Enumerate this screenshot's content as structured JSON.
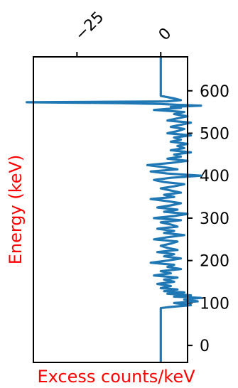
{
  "chart_data": {
    "type": "line",
    "orientation": "vertical",
    "xlabel": "Excess counts/keV",
    "ylabel": "Energy (keV)",
    "xlim": [
      -38,
      8
    ],
    "ylim": [
      -40,
      680
    ],
    "x_axis_position": "top",
    "y_axis_position": "right",
    "x_ticks": [
      {
        "value": -25,
        "label": "−25"
      },
      {
        "value": 0,
        "label": "0"
      }
    ],
    "y_ticks": [
      {
        "value": 0,
        "label": "0"
      },
      {
        "value": 100,
        "label": "100"
      },
      {
        "value": 200,
        "label": "200"
      },
      {
        "value": 300,
        "label": "300"
      },
      {
        "value": 400,
        "label": "400"
      },
      {
        "value": 500,
        "label": "500"
      },
      {
        "value": 600,
        "label": "600"
      }
    ],
    "grid": false,
    "label_color": "#ff0000",
    "series": [
      {
        "color": "#1f77b4",
        "energy": [
          -40,
          0,
          50,
          88,
          90,
          95,
          100,
          104,
          108,
          112,
          115,
          118,
          122,
          125,
          128,
          132,
          135,
          140,
          145,
          150,
          155,
          160,
          165,
          170,
          175,
          180,
          185,
          190,
          195,
          200,
          205,
          210,
          215,
          220,
          225,
          230,
          235,
          240,
          245,
          250,
          255,
          260,
          265,
          270,
          275,
          280,
          285,
          290,
          295,
          300,
          305,
          310,
          315,
          320,
          325,
          330,
          335,
          340,
          345,
          350,
          355,
          360,
          365,
          370,
          375,
          380,
          385,
          390,
          395,
          400,
          405,
          410,
          415,
          420,
          425,
          430,
          435,
          440,
          445,
          450,
          455,
          460,
          465,
          470,
          475,
          480,
          485,
          490,
          495,
          500,
          505,
          510,
          515,
          520,
          525,
          530,
          535,
          540,
          545,
          550,
          555,
          560,
          562,
          565,
          567,
          569,
          571,
          573,
          575,
          578,
          582,
          585,
          588,
          592,
          600,
          640,
          680
        ],
        "counts": [
          0,
          0,
          0,
          0,
          2,
          9,
          4,
          11,
          7,
          12,
          4,
          9,
          2,
          7,
          1,
          5,
          0,
          3,
          -1,
          4,
          1,
          5,
          -2,
          3,
          0,
          6,
          2,
          4,
          -3,
          2,
          6,
          1,
          4,
          -1,
          5,
          2,
          0,
          3,
          5,
          -2,
          2,
          7,
          1,
          4,
          -1,
          5,
          3,
          0,
          6,
          -2,
          4,
          8,
          1,
          5,
          -1,
          3,
          6,
          2,
          -3,
          4,
          1,
          6,
          3,
          0,
          4,
          7,
          1,
          -2,
          3,
          12,
          2,
          -3,
          5,
          1,
          -4,
          3,
          8,
          2,
          6,
          4,
          9,
          3,
          7,
          5,
          8,
          3,
          6,
          4,
          9,
          2,
          5,
          7,
          3,
          6,
          9,
          2,
          5,
          8,
          4,
          7,
          -2,
          6,
          3,
          12,
          5,
          0,
          -12,
          -40,
          2,
          6,
          4,
          2,
          0,
          0,
          0,
          0,
          0
        ]
      }
    ]
  }
}
